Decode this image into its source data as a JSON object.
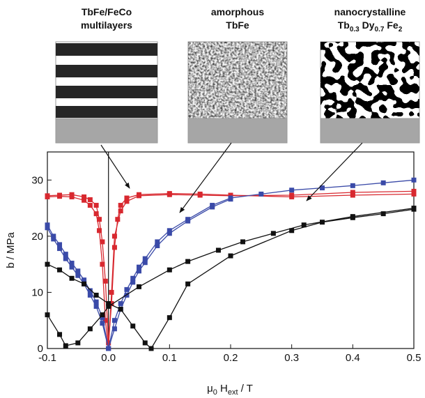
{
  "chart_data": {
    "type": "line",
    "ylabel": {
      "parts": [
        "b / MPa"
      ]
    },
    "xlabel": {
      "parts": [
        "μ",
        "0",
        " H",
        "ext",
        " / T"
      ]
    },
    "annotations": [
      {
        "lines": [
          "TbFe/FeCo",
          "multilayers"
        ],
        "color": "#d8282f"
      },
      {
        "lines": [
          "amorphous",
          "TbFe"
        ],
        "color": "#3a4aa8"
      },
      {
        "lines": [
          "nanocrystalline"
        ],
        "formula": [
          "Tb",
          "0.3",
          " Dy",
          "0.7",
          " Fe",
          "2"
        ],
        "color": "#111111"
      }
    ],
    "xlim": [
      -0.1,
      0.5
    ],
    "ylim": [
      0,
      35
    ],
    "xticks": [
      -0.1,
      {
        "value": 0,
        "label": "0.0"
      },
      0.1,
      0.2,
      0.3,
      0.4,
      0.5
    ],
    "yticks": [
      0,
      10,
      20,
      30
    ],
    "series": [
      {
        "color": "#d8282f",
        "x": [
          -0.1,
          -0.08,
          -0.06,
          -0.04,
          -0.03,
          -0.02,
          -0.015,
          -0.01,
          -0.005,
          0,
          0.005,
          0.01,
          0.015,
          0.02,
          0.03,
          0.05,
          0.1,
          0.15,
          0.2,
          0.3,
          0.4,
          0.5
        ],
        "values": [
          27.2,
          27.3,
          27.4,
          27,
          26.5,
          25.5,
          23,
          19,
          12,
          1,
          8,
          18,
          23,
          25.5,
          26.8,
          27.4,
          27.6,
          27.5,
          27.3,
          27,
          27.3,
          27.5
        ]
      },
      {
        "color": "#d8282f",
        "x": [
          -0.1,
          -0.08,
          -0.06,
          -0.04,
          -0.03,
          -0.02,
          -0.015,
          -0.01,
          -0.005,
          0,
          0.005,
          0.01,
          0.02,
          0.03,
          0.05,
          0.1,
          0.15,
          0.2,
          0.3,
          0.4,
          0.5
        ],
        "values": [
          27,
          27.1,
          27,
          26.4,
          25.5,
          24,
          21,
          15,
          5,
          0,
          10,
          20,
          24.5,
          26.2,
          27.2,
          27.4,
          27.3,
          27.2,
          27.3,
          27.8,
          28
        ]
      },
      {
        "color": "#3a4aa8",
        "x": [
          -0.1,
          -0.09,
          -0.08,
          -0.07,
          -0.06,
          -0.05,
          -0.04,
          -0.03,
          -0.02,
          -0.01,
          0,
          0.01,
          0.02,
          0.03,
          0.04,
          0.05,
          0.06,
          0.08,
          0.1,
          0.13,
          0.17,
          0.2,
          0.25,
          0.3,
          0.35,
          0.4,
          0.45,
          0.5
        ],
        "values": [
          21.5,
          19.5,
          17.8,
          16,
          14.5,
          13,
          11.5,
          9.5,
          7.5,
          4.5,
          0,
          5,
          8,
          10.5,
          12.5,
          14.5,
          16,
          19,
          21,
          23,
          25.5,
          26.8,
          27.5,
          28.2,
          28.6,
          29,
          29.5,
          30
        ]
      },
      {
        "color": "#3a4aa8",
        "x": [
          -0.1,
          -0.09,
          -0.08,
          -0.07,
          -0.06,
          -0.05,
          -0.04,
          -0.03,
          -0.02,
          -0.01,
          0,
          0.01,
          0.02,
          0.03,
          0.04,
          0.05,
          0.06,
          0.08,
          0.1,
          0.13,
          0.17,
          0.2
        ],
        "values": [
          22,
          20,
          18.5,
          16.8,
          15.2,
          13.8,
          12.2,
          10.3,
          8.3,
          5.5,
          0,
          3.5,
          7,
          9.5,
          11.8,
          13.8,
          15.3,
          18.3,
          20.5,
          22.7,
          25.2,
          26.6
        ]
      },
      {
        "color": "#111111",
        "x": [
          -0.1,
          -0.08,
          -0.06,
          -0.04,
          -0.02,
          0,
          0.02,
          0.04,
          0.06,
          0.07,
          0.1,
          0.13,
          0.2,
          0.3,
          0.35,
          0.4,
          0.45,
          0.5
        ],
        "values": [
          15,
          14,
          12.5,
          11.5,
          9.5,
          8,
          7,
          4,
          1,
          0,
          5.5,
          11.5,
          16.5,
          21,
          22.5,
          23.3,
          24,
          24.8
        ]
      },
      {
        "color": "#111111",
        "x": [
          -0.1,
          -0.08,
          -0.07,
          -0.05,
          -0.03,
          -0.01,
          0,
          0.05,
          0.1,
          0.13,
          0.18,
          0.22,
          0.27,
          0.32,
          0.4,
          0.5
        ],
        "values": [
          6,
          2.5,
          0.5,
          1,
          3.5,
          6,
          7.5,
          11,
          14,
          15.5,
          17.5,
          19,
          20.5,
          22,
          23.5,
          25
        ]
      }
    ]
  }
}
